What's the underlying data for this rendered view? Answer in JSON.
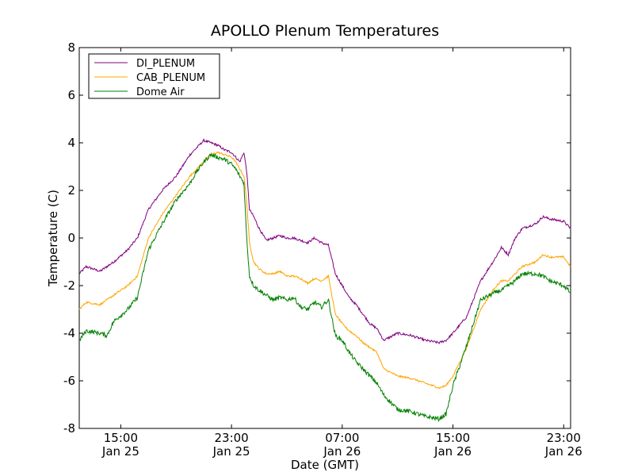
{
  "chart_data": {
    "type": "line",
    "title": "APOLLO Plenum Temperatures",
    "xlabel": "Date (GMT)",
    "ylabel": "Temperature (C)",
    "x_unit": "hours since Jan 25 12:00 GMT",
    "xlim": [
      0,
      35.5
    ],
    "ylim": [
      -8,
      8
    ],
    "y_ticks": [
      -8,
      -6,
      -4,
      -2,
      0,
      2,
      4,
      6,
      8
    ],
    "y_tick_labels": [
      "-8",
      "-6",
      "-4",
      "-2",
      "0",
      "2",
      "4",
      "6",
      "8"
    ],
    "x_ticks": [
      {
        "x": 3,
        "time": "15:00",
        "date": "Jan 25"
      },
      {
        "x": 11,
        "time": "23:00",
        "date": "Jan 25"
      },
      {
        "x": 19,
        "time": "07:00",
        "date": "Jan 26"
      },
      {
        "x": 27,
        "time": "15:00",
        "date": "Jan 26"
      },
      {
        "x": 35,
        "time": "23:00",
        "date": "Jan 26"
      }
    ],
    "legend_position": "top-left",
    "series": [
      {
        "name": "DI_PLENUM",
        "color": "#800080",
        "x": [
          0,
          0.5,
          1.5,
          2.5,
          3.5,
          4.2,
          5,
          6,
          7,
          8,
          8.5,
          9,
          9.5,
          10,
          10.5,
          11,
          11.3,
          11.6,
          11.9,
          12.1,
          12.3,
          12.6,
          13,
          13.5,
          14,
          14.5,
          15,
          15.5,
          16,
          16.5,
          17,
          17.5,
          18,
          18.5,
          19,
          19.5,
          20,
          20.5,
          21,
          21.5,
          22,
          23,
          24,
          25,
          26,
          26.5,
          27,
          28,
          29,
          30,
          30.5,
          31,
          31.5,
          32,
          33,
          33.5,
          34,
          35,
          35.5
        ],
        "values": [
          -1.5,
          -1.2,
          -1.4,
          -1.0,
          -0.5,
          0.0,
          1.2,
          2.0,
          2.6,
          3.5,
          3.8,
          4.1,
          4.0,
          3.9,
          3.7,
          3.6,
          3.4,
          3.2,
          3.6,
          2.8,
          1.2,
          0.9,
          0.4,
          -0.1,
          0.0,
          0.1,
          0.0,
          0.0,
          -0.1,
          -0.2,
          0.0,
          -0.2,
          -0.3,
          -1.5,
          -2.0,
          -2.5,
          -2.8,
          -3.2,
          -3.6,
          -3.8,
          -4.3,
          -4.0,
          -4.1,
          -4.3,
          -4.4,
          -4.3,
          -4.0,
          -3.3,
          -1.8,
          -0.9,
          -0.4,
          -0.7,
          0.0,
          0.4,
          0.6,
          0.9,
          0.8,
          0.7,
          0.4
        ]
      },
      {
        "name": "CAB_PLENUM",
        "color": "#ffa500",
        "x": [
          0,
          0.5,
          1.5,
          2.5,
          3.5,
          4.2,
          5,
          6,
          7,
          8,
          8.5,
          9,
          9.5,
          10,
          10.5,
          11,
          11.3,
          11.6,
          11.9,
          12.1,
          12.3,
          12.6,
          13,
          13.5,
          14,
          14.5,
          15,
          15.5,
          16,
          16.5,
          17,
          17.5,
          18,
          18.5,
          19,
          19.5,
          20,
          20.5,
          21,
          21.5,
          22,
          23,
          24,
          25,
          26,
          26.5,
          27,
          28,
          29,
          30,
          30.5,
          31,
          31.5,
          32,
          33,
          33.5,
          34,
          35,
          35.5
        ],
        "values": [
          -3.0,
          -2.7,
          -2.8,
          -2.4,
          -2.0,
          -1.6,
          0.0,
          1.0,
          1.8,
          2.6,
          2.9,
          3.2,
          3.5,
          3.6,
          3.5,
          3.4,
          3.2,
          2.9,
          2.6,
          1.5,
          -0.2,
          -1.0,
          -1.3,
          -1.5,
          -1.5,
          -1.4,
          -1.6,
          -1.6,
          -1.7,
          -1.9,
          -1.7,
          -1.8,
          -1.6,
          -3.2,
          -3.6,
          -3.9,
          -4.1,
          -4.4,
          -4.6,
          -4.8,
          -5.5,
          -5.8,
          -5.9,
          -6.1,
          -6.3,
          -6.2,
          -5.8,
          -4.6,
          -3.0,
          -2.1,
          -1.8,
          -1.8,
          -1.5,
          -1.2,
          -1.0,
          -0.7,
          -0.8,
          -0.8,
          -1.2
        ]
      },
      {
        "name": "Dome Air",
        "color": "#008000",
        "x": [
          0,
          0.5,
          1.5,
          2.0,
          2.5,
          3.5,
          4.2,
          5,
          6,
          7,
          8,
          8.5,
          9,
          9.5,
          10,
          10.5,
          11,
          11.3,
          11.6,
          11.9,
          12.1,
          12.3,
          12.6,
          13,
          13.5,
          14,
          14.5,
          15,
          15.5,
          16,
          16.5,
          17,
          17.5,
          18,
          18.5,
          19,
          19.5,
          20,
          20.5,
          21,
          21.5,
          22,
          23,
          24,
          25,
          26,
          26.5,
          27,
          28,
          29,
          30,
          30.5,
          31,
          31.5,
          32,
          33,
          33.5,
          34,
          35,
          35.5
        ],
        "values": [
          -4.3,
          -3.9,
          -4.0,
          -4.1,
          -3.5,
          -3.0,
          -2.5,
          -0.5,
          0.6,
          1.6,
          2.3,
          2.8,
          3.2,
          3.5,
          3.4,
          3.3,
          3.1,
          2.9,
          2.6,
          2.3,
          0.0,
          -1.6,
          -2.0,
          -2.2,
          -2.4,
          -2.6,
          -2.5,
          -2.6,
          -2.5,
          -2.9,
          -3.0,
          -2.7,
          -2.9,
          -2.6,
          -4.1,
          -4.3,
          -4.8,
          -5.2,
          -5.5,
          -5.8,
          -6.1,
          -6.6,
          -7.2,
          -7.3,
          -7.5,
          -7.6,
          -7.4,
          -6.2,
          -4.5,
          -2.6,
          -2.3,
          -2.2,
          -2.0,
          -1.8,
          -1.5,
          -1.5,
          -1.6,
          -1.8,
          -2.0,
          -2.3
        ]
      }
    ]
  }
}
